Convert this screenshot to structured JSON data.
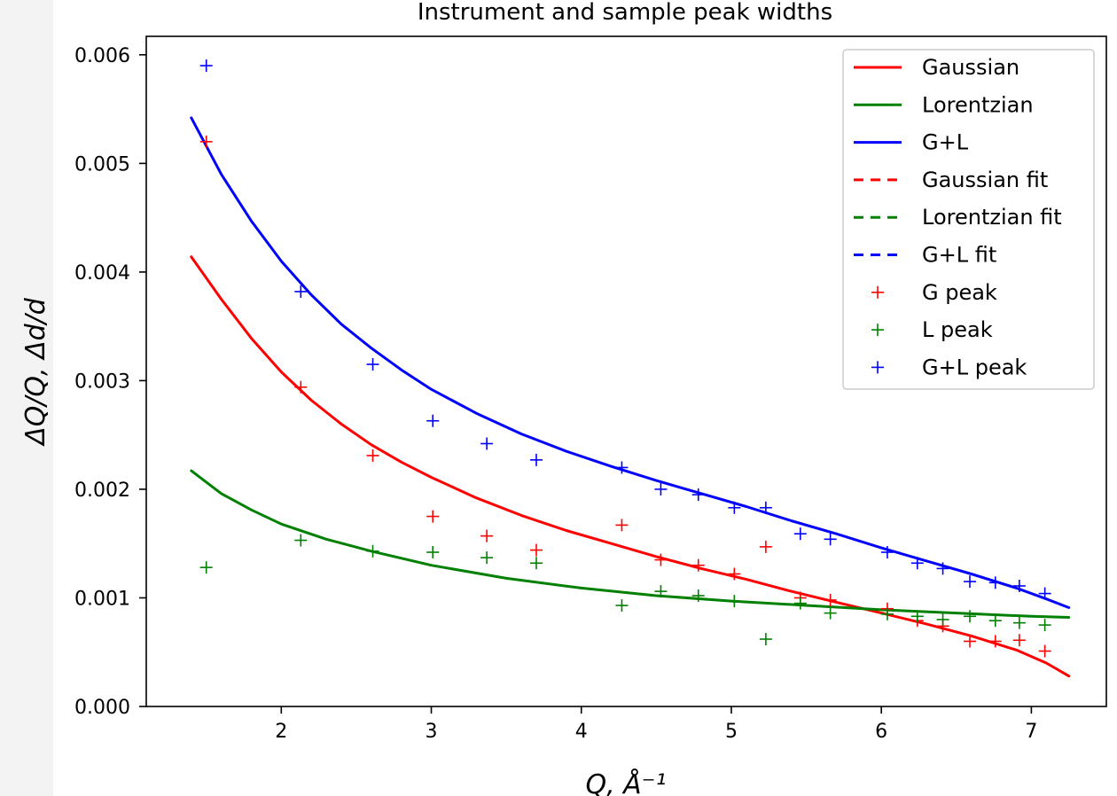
{
  "chart_data": {
    "type": "line",
    "title": "Instrument and sample peak widths",
    "xlabel": "Q, Å⁻¹",
    "ylabel": "ΔQ/Q, Δd/d",
    "xlim": [
      1.1,
      7.5
    ],
    "ylim": [
      0.0,
      0.00617
    ],
    "xticks": [
      2,
      3,
      4,
      5,
      6,
      7
    ],
    "xtick_labels": [
      "2",
      "3",
      "4",
      "5",
      "6",
      "7"
    ],
    "yticks": [
      0.0,
      0.001,
      0.002,
      0.003,
      0.004,
      0.005,
      0.006
    ],
    "ytick_labels": [
      "0.000",
      "0.001",
      "0.002",
      "0.003",
      "0.004",
      "0.005",
      "0.006"
    ],
    "grid": false,
    "legend_position": "top-right",
    "curves": [
      {
        "name": "Gaussian",
        "color": "#ff0000",
        "x": [
          1.4,
          1.6,
          1.8,
          2.0,
          2.2,
          2.4,
          2.6,
          2.8,
          3.0,
          3.3,
          3.6,
          3.9,
          4.2,
          4.5,
          4.8,
          5.1,
          5.4,
          5.7,
          6.0,
          6.3,
          6.6,
          6.9,
          7.1,
          7.25
        ],
        "values": [
          0.00414,
          0.00375,
          0.00339,
          0.00308,
          0.00282,
          0.0026,
          0.00241,
          0.00225,
          0.00211,
          0.00192,
          0.00176,
          0.00162,
          0.0015,
          0.00138,
          0.00127,
          0.00117,
          0.00106,
          0.00096,
          0.00086,
          0.00076,
          0.00065,
          0.00052,
          0.0004,
          0.00028
        ]
      },
      {
        "name": "Lorentzian",
        "color": "#008000",
        "x": [
          1.4,
          1.6,
          1.8,
          2.0,
          2.3,
          2.6,
          3.0,
          3.5,
          4.0,
          4.5,
          5.0,
          5.5,
          6.0,
          6.5,
          7.0,
          7.25
        ],
        "values": [
          0.00217,
          0.00196,
          0.00181,
          0.00168,
          0.00154,
          0.00143,
          0.0013,
          0.00118,
          0.00109,
          0.00102,
          0.00097,
          0.00093,
          0.00089,
          0.00086,
          0.00083,
          0.00082
        ]
      },
      {
        "name": "G+L",
        "color": "#0000ff",
        "x": [
          1.4,
          1.6,
          1.8,
          2.0,
          2.2,
          2.4,
          2.6,
          2.8,
          3.0,
          3.3,
          3.6,
          3.9,
          4.2,
          4.5,
          4.8,
          5.1,
          5.4,
          5.7,
          6.0,
          6.3,
          6.6,
          6.9,
          7.1,
          7.25
        ],
        "values": [
          0.00542,
          0.0049,
          0.00447,
          0.0041,
          0.00379,
          0.00352,
          0.0033,
          0.0031,
          0.00292,
          0.0027,
          0.00251,
          0.00235,
          0.00221,
          0.00208,
          0.00196,
          0.00184,
          0.00171,
          0.00159,
          0.00146,
          0.00134,
          0.00122,
          0.00109,
          0.00099,
          0.00091
        ]
      }
    ],
    "fit_legend_entries": [
      {
        "name": "Gaussian fit",
        "color": "#ff0000"
      },
      {
        "name": "Lorentzian fit",
        "color": "#008000"
      },
      {
        "name": "G+L fit",
        "color": "#0000ff"
      }
    ],
    "points": [
      {
        "name": "G peak",
        "color": "#ff0000",
        "x": [
          1.5,
          2.13,
          2.61,
          3.01,
          3.37,
          3.7,
          4.27,
          4.53,
          4.78,
          5.02,
          5.23,
          5.46,
          5.66,
          6.04,
          6.24,
          6.41,
          6.59,
          6.76,
          6.92,
          7.09
        ],
        "y": [
          0.0052,
          0.00294,
          0.00231,
          0.00175,
          0.00157,
          0.00144,
          0.00167,
          0.00135,
          0.0013,
          0.00122,
          0.00147,
          0.001,
          0.00098,
          0.0009,
          0.00079,
          0.00074,
          0.0006,
          0.0006,
          0.00061,
          0.00051
        ]
      },
      {
        "name": "L peak",
        "color": "#008000",
        "x": [
          1.5,
          2.13,
          2.61,
          3.01,
          3.37,
          3.7,
          4.27,
          4.53,
          4.78,
          5.02,
          5.23,
          5.46,
          5.66,
          6.04,
          6.24,
          6.41,
          6.59,
          6.76,
          6.92,
          7.09
        ],
        "y": [
          0.00128,
          0.00153,
          0.00143,
          0.00142,
          0.00137,
          0.00132,
          0.00093,
          0.00106,
          0.00102,
          0.00097,
          0.00062,
          0.00095,
          0.00086,
          0.00085,
          0.00083,
          0.0008,
          0.00083,
          0.00079,
          0.00077,
          0.00075
        ]
      },
      {
        "name": "G+L peak",
        "color": "#0000ff",
        "x": [
          1.5,
          2.13,
          2.61,
          3.01,
          3.37,
          3.7,
          4.27,
          4.53,
          4.78,
          5.02,
          5.23,
          5.46,
          5.66,
          6.04,
          6.24,
          6.41,
          6.59,
          6.76,
          6.92,
          7.09
        ],
        "y": [
          0.0059,
          0.00382,
          0.00315,
          0.00263,
          0.00242,
          0.00227,
          0.0022,
          0.002,
          0.00195,
          0.00183,
          0.00183,
          0.00159,
          0.00154,
          0.00142,
          0.00132,
          0.00127,
          0.00115,
          0.00114,
          0.00111,
          0.00104
        ]
      }
    ]
  }
}
